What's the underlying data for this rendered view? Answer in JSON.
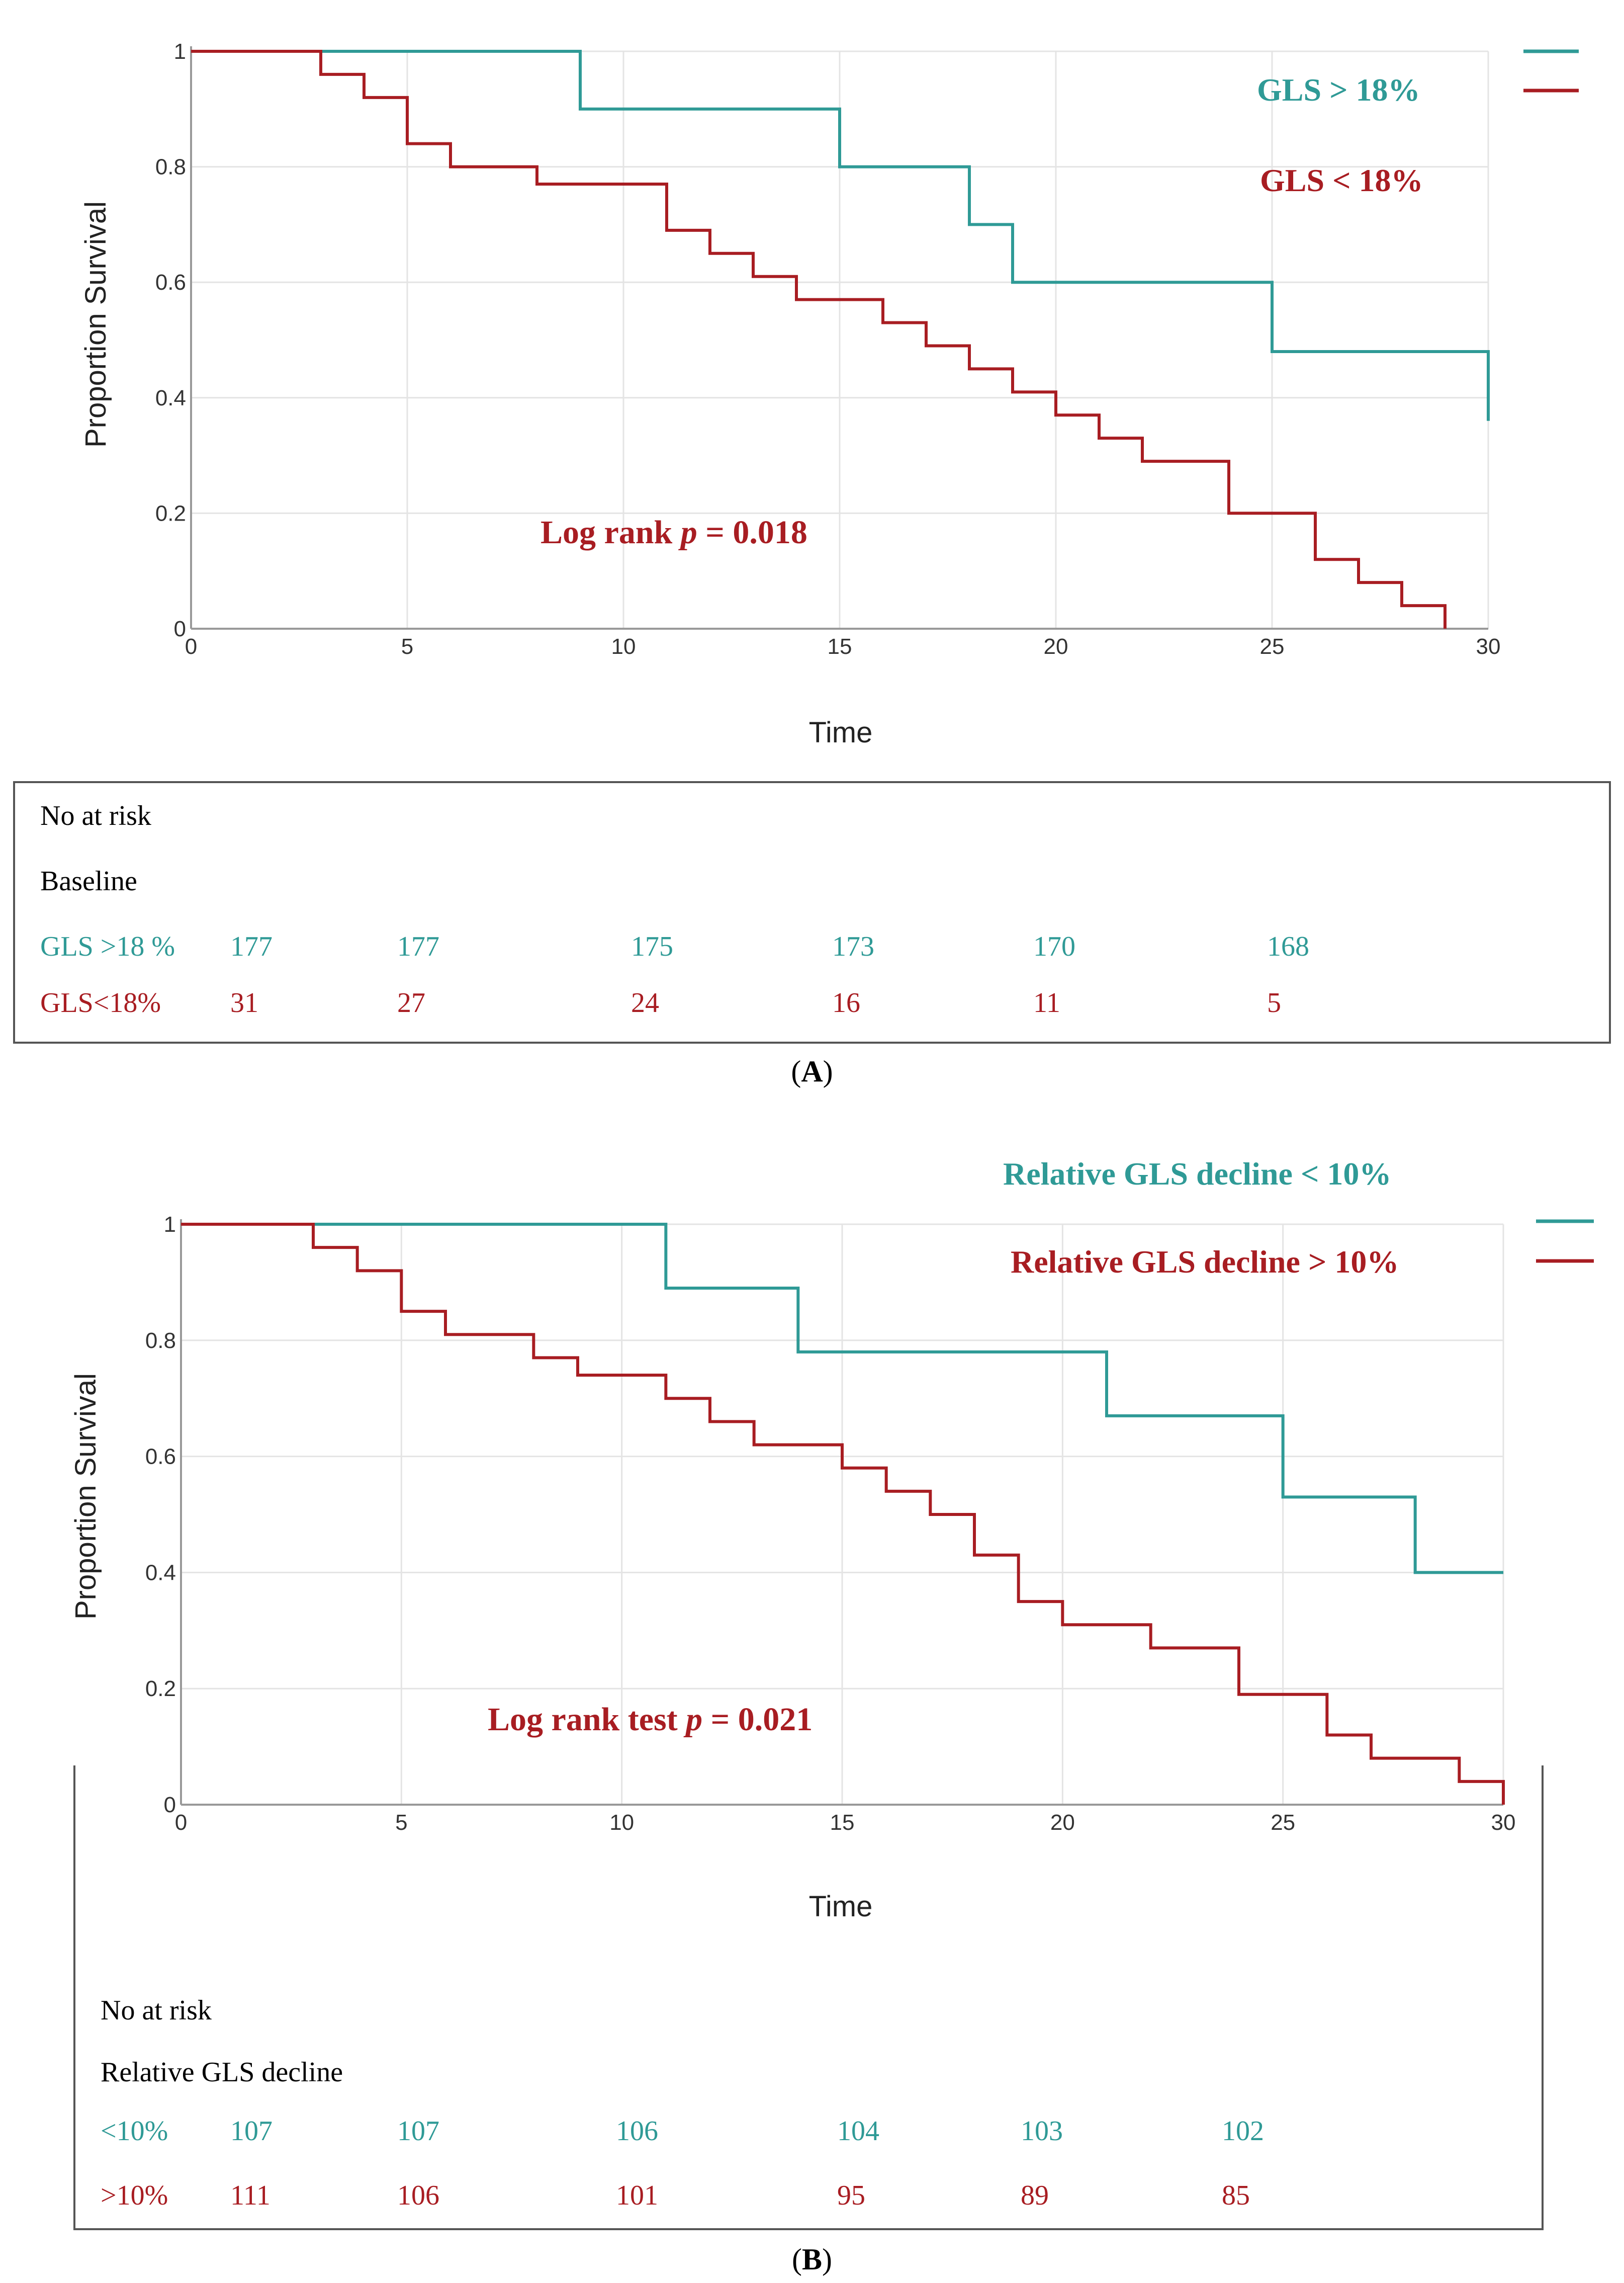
{
  "colors": {
    "teal": "#2f9a96",
    "red": "#a81d22",
    "grid": "#e4e4e4",
    "axis": "#999999"
  },
  "chart_data": [
    {
      "panel": "A",
      "type": "line",
      "step": true,
      "xlabel": "Time",
      "ylabel": "Proportion Survival",
      "xlim": [
        0,
        30
      ],
      "ylim": [
        0,
        1
      ],
      "xticks": [
        "0",
        "5",
        "10",
        "15",
        "20",
        "25",
        "30"
      ],
      "yticks": [
        "0",
        "0.2",
        "0.4",
        "0.6",
        "0.8",
        "1"
      ],
      "series": [
        {
          "name": "GLS > 18%",
          "color": "#2f9a96",
          "steps": [
            [
              0,
              1
            ],
            [
              9,
              0.9
            ],
            [
              15,
              0.8
            ],
            [
              18,
              0.7
            ],
            [
              19,
              0.6
            ],
            [
              25,
              0.48
            ],
            [
              30,
              0.48
            ]
          ],
          "end_drop": 0.36
        },
        {
          "name": "GLS < 18%",
          "color": "#a81d22",
          "steps": [
            [
              0,
              1
            ],
            [
              3,
              0.96
            ],
            [
              4,
              0.92
            ],
            [
              5,
              0.84
            ],
            [
              6,
              0.8
            ],
            [
              8,
              0.77
            ],
            [
              11,
              0.69
            ],
            [
              12,
              0.65
            ],
            [
              13,
              0.61
            ],
            [
              14,
              0.57
            ],
            [
              16,
              0.53
            ],
            [
              17,
              0.49
            ],
            [
              18,
              0.45
            ],
            [
              19,
              0.41
            ],
            [
              20,
              0.37
            ],
            [
              21,
              0.33
            ],
            [
              22,
              0.29
            ],
            [
              24,
              0.2
            ],
            [
              26,
              0.12
            ],
            [
              27,
              0.08
            ],
            [
              28,
              0.04
            ],
            [
              29,
              0.0
            ]
          ]
        }
      ],
      "annotation": "Log rank p = 0.018",
      "annotation_prefix": "Log rank ",
      "annotation_p": "p",
      "annotation_suffix": " = 0.018",
      "legend": [
        "GLS > 18%",
        "GLS < 18%"
      ],
      "risk_table": {
        "title": "No at risk",
        "subtitle": "Baseline",
        "rows": [
          {
            "label": "GLS >18 %",
            "color": "#2f9a96",
            "values": [
              "177",
              "177",
              "175",
              "173",
              "170",
              "168"
            ]
          },
          {
            "label": "GLS<18%",
            "color": "#a81d22",
            "values": [
              "31",
              "27",
              "24",
              "16",
              "11",
              "5"
            ]
          }
        ]
      },
      "caption_letter": "A"
    },
    {
      "panel": "B",
      "type": "line",
      "step": true,
      "xlabel": "Time",
      "ylabel": "Proportion Survival",
      "xlim": [
        0,
        30
      ],
      "ylim": [
        0,
        1
      ],
      "xticks": [
        "0",
        "5",
        "10",
        "15",
        "20",
        "25",
        "30"
      ],
      "yticks": [
        "0",
        "0.2",
        "0.4",
        "0.6",
        "0.8",
        "1"
      ],
      "series": [
        {
          "name": "Relative GLS decline < 10%",
          "color": "#2f9a96",
          "steps": [
            [
              0,
              1
            ],
            [
              11,
              0.89
            ],
            [
              14,
              0.78
            ],
            [
              21,
              0.67
            ],
            [
              25,
              0.53
            ],
            [
              28,
              0.4
            ],
            [
              30,
              0.4
            ]
          ]
        },
        {
          "name": "Relative GLS decline > 10%",
          "color": "#a81d22",
          "steps": [
            [
              0,
              1
            ],
            [
              3,
              0.96
            ],
            [
              4,
              0.92
            ],
            [
              5,
              0.85
            ],
            [
              6,
              0.81
            ],
            [
              8,
              0.77
            ],
            [
              9,
              0.74
            ],
            [
              11,
              0.7
            ],
            [
              12,
              0.66
            ],
            [
              13,
              0.62
            ],
            [
              15,
              0.58
            ],
            [
              16,
              0.54
            ],
            [
              17,
              0.5
            ],
            [
              18,
              0.43
            ],
            [
              19,
              0.35
            ],
            [
              20,
              0.31
            ],
            [
              22,
              0.27
            ],
            [
              24,
              0.19
            ],
            [
              26,
              0.12
            ],
            [
              27,
              0.08
            ],
            [
              29,
              0.04
            ],
            [
              30,
              0.0
            ]
          ]
        }
      ],
      "annotation": "Log rank test p = 0.021",
      "annotation_prefix": "Log rank test ",
      "annotation_p": "p",
      "annotation_suffix": " = 0.021",
      "legend": [
        "Relative GLS decline < 10%",
        "Relative GLS decline > 10%"
      ],
      "risk_table": {
        "title": "No at risk",
        "subtitle": "Relative GLS decline",
        "rows": [
          {
            "label": "<10%",
            "color": "#2f9a96",
            "values": [
              "107",
              "107",
              "106",
              "104",
              "103",
              "102"
            ]
          },
          {
            "label": ">10%",
            "color": "#a81d22",
            "values": [
              "111",
              "106",
              "101",
              "95",
              "89",
              "85"
            ]
          }
        ]
      },
      "caption_letter": "B"
    }
  ]
}
